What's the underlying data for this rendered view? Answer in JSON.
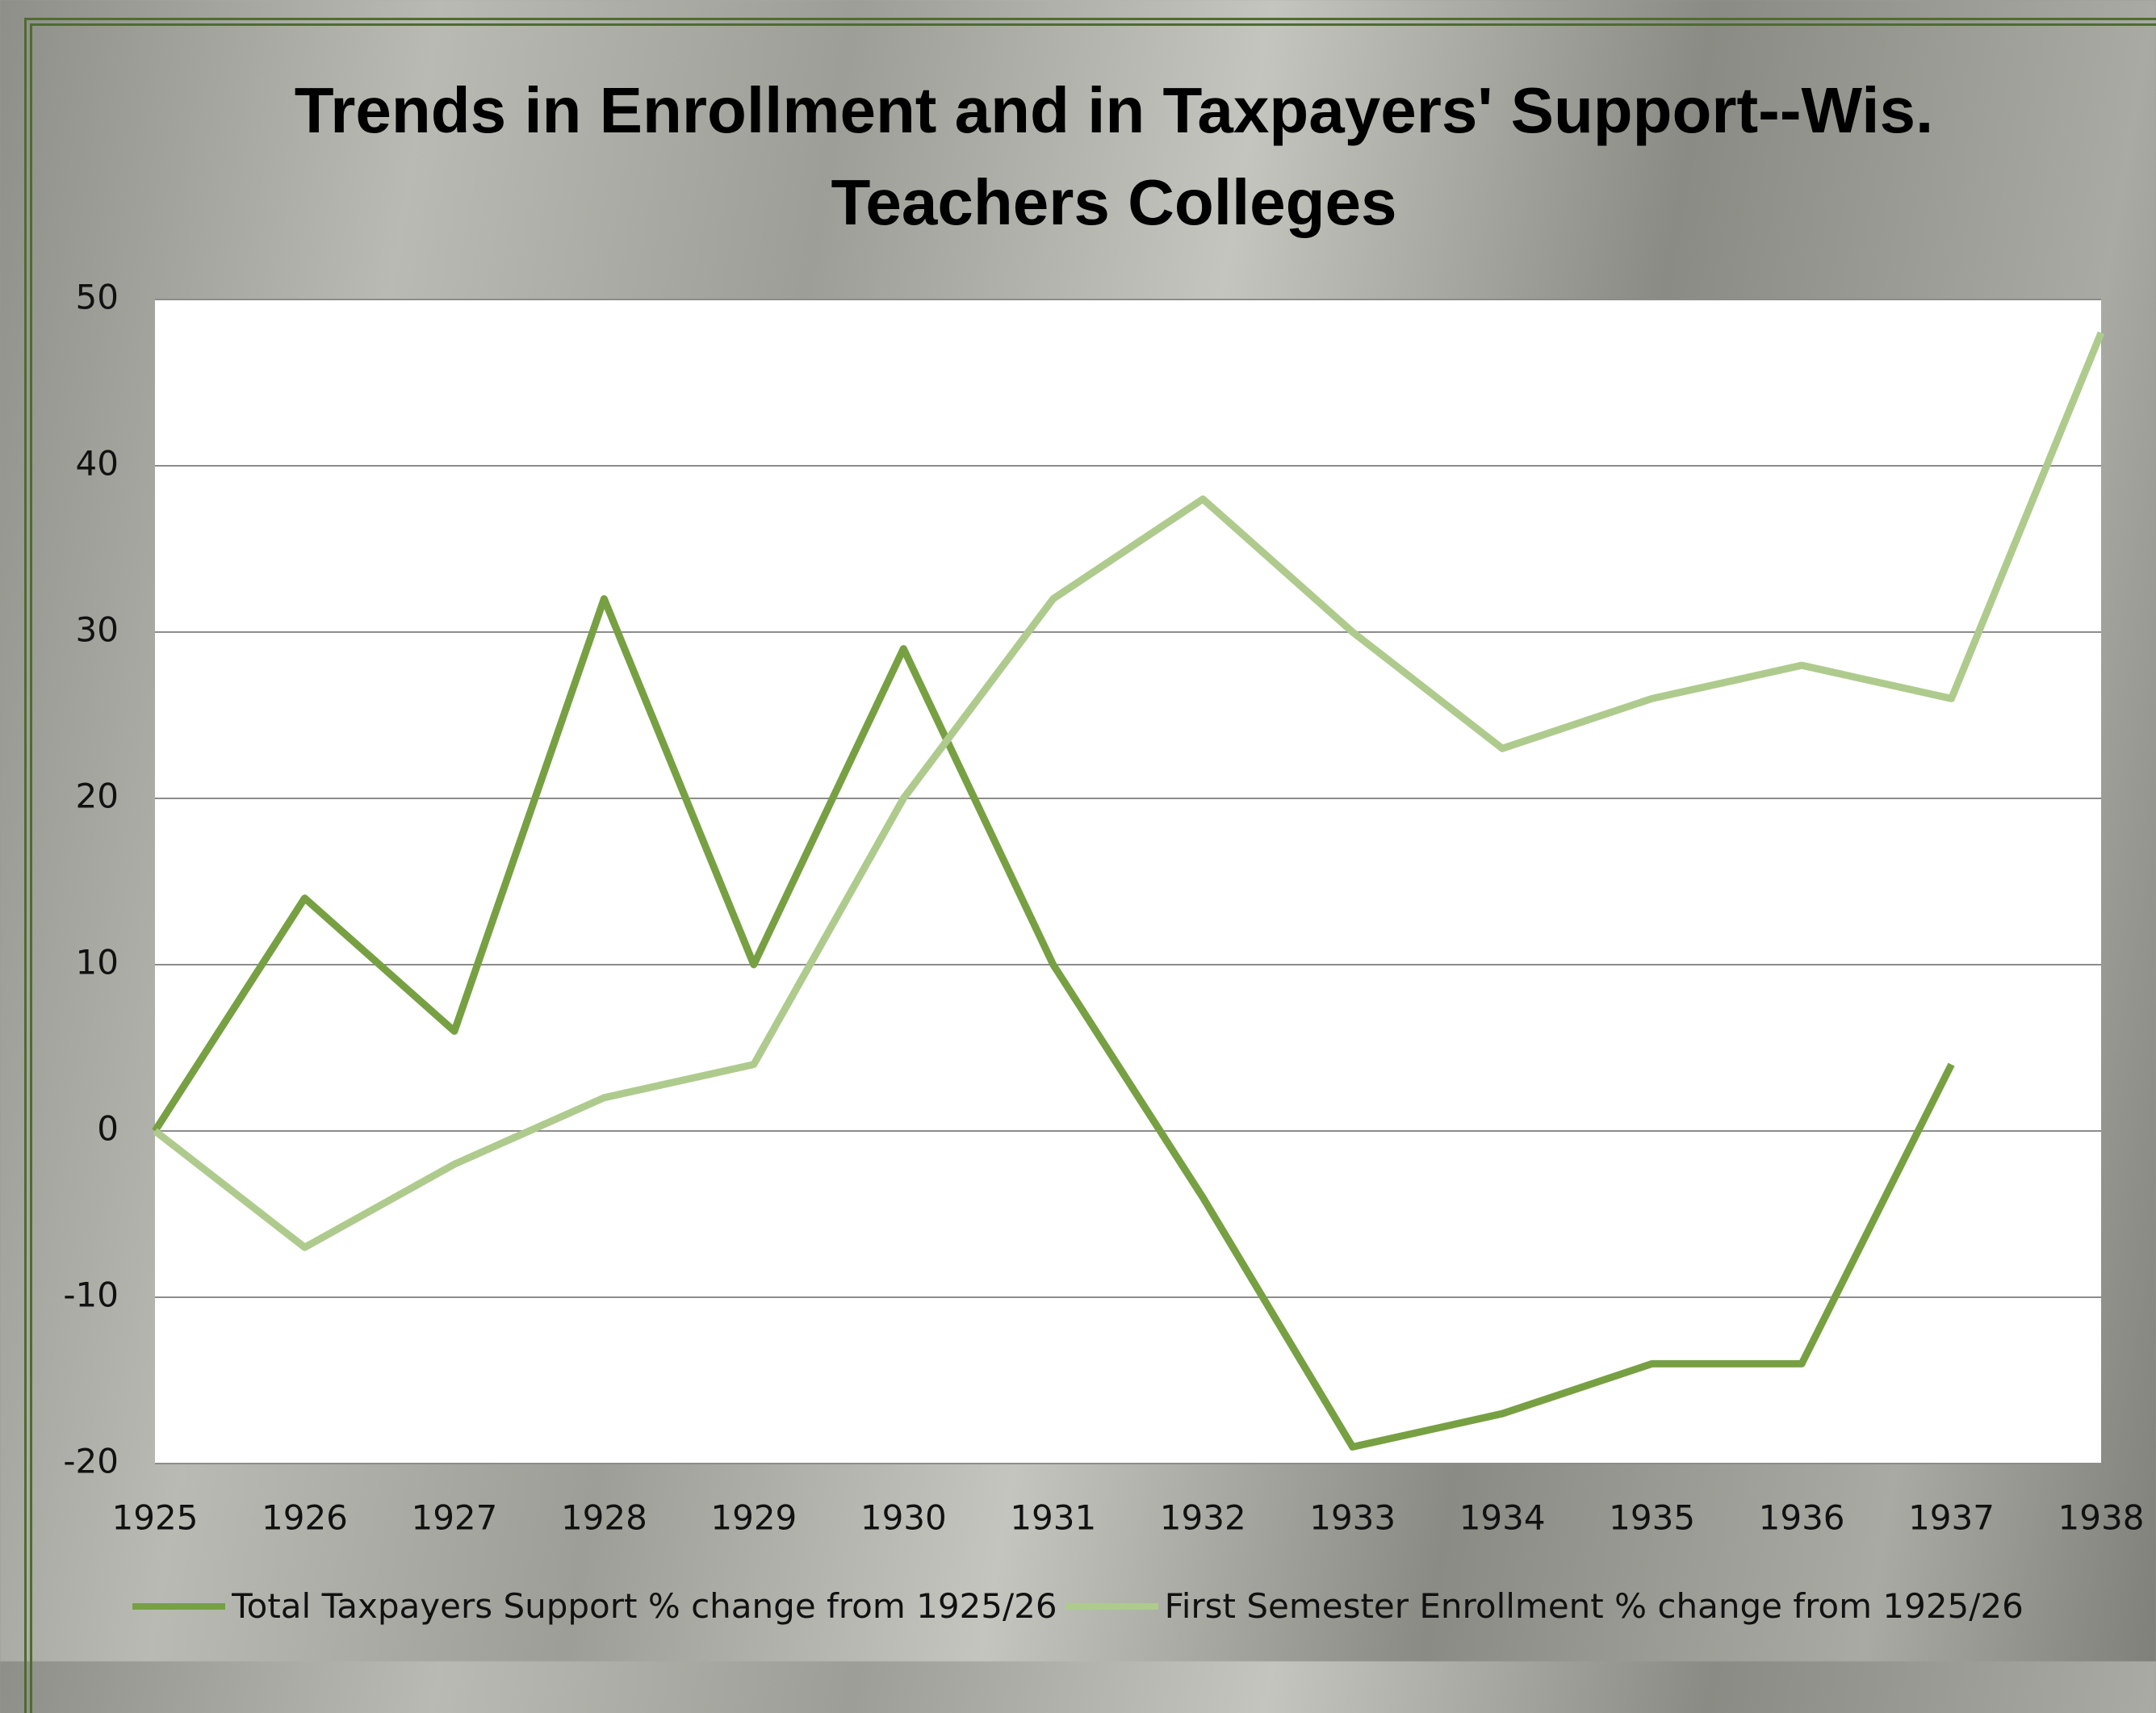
{
  "chart_data": {
    "type": "line",
    "title": "Trends in Enrollment and in Taxpayers' Support--Wis. Teachers Colleges",
    "x": [
      1925,
      1926,
      1927,
      1928,
      1929,
      1930,
      1931,
      1932,
      1933,
      1934,
      1935,
      1936,
      1937,
      1938
    ],
    "series": [
      {
        "name": "Total Taxpayers Support % change from 1925/26",
        "color": "#77a043",
        "values": [
          0,
          14,
          6,
          32,
          10,
          29,
          10,
          -4,
          -19,
          -17,
          -14,
          -14,
          4,
          null
        ]
      },
      {
        "name": "First Semester Enrollment % change from 1925/26",
        "color": "#aecb8d",
        "values": [
          0,
          -7,
          -2,
          2,
          4,
          20,
          32,
          38,
          30,
          23,
          26,
          28,
          26,
          48
        ]
      }
    ],
    "xlim": [
      1925,
      1938
    ],
    "xticks": [
      1925,
      1926,
      1927,
      1928,
      1929,
      1930,
      1931,
      1932,
      1933,
      1934,
      1935,
      1936,
      1937,
      1938
    ],
    "ylim": [
      -20,
      50
    ],
    "yticks": [
      -20,
      -10,
      0,
      10,
      20,
      30,
      40,
      50
    ],
    "grid": true,
    "legend": "bottom"
  }
}
